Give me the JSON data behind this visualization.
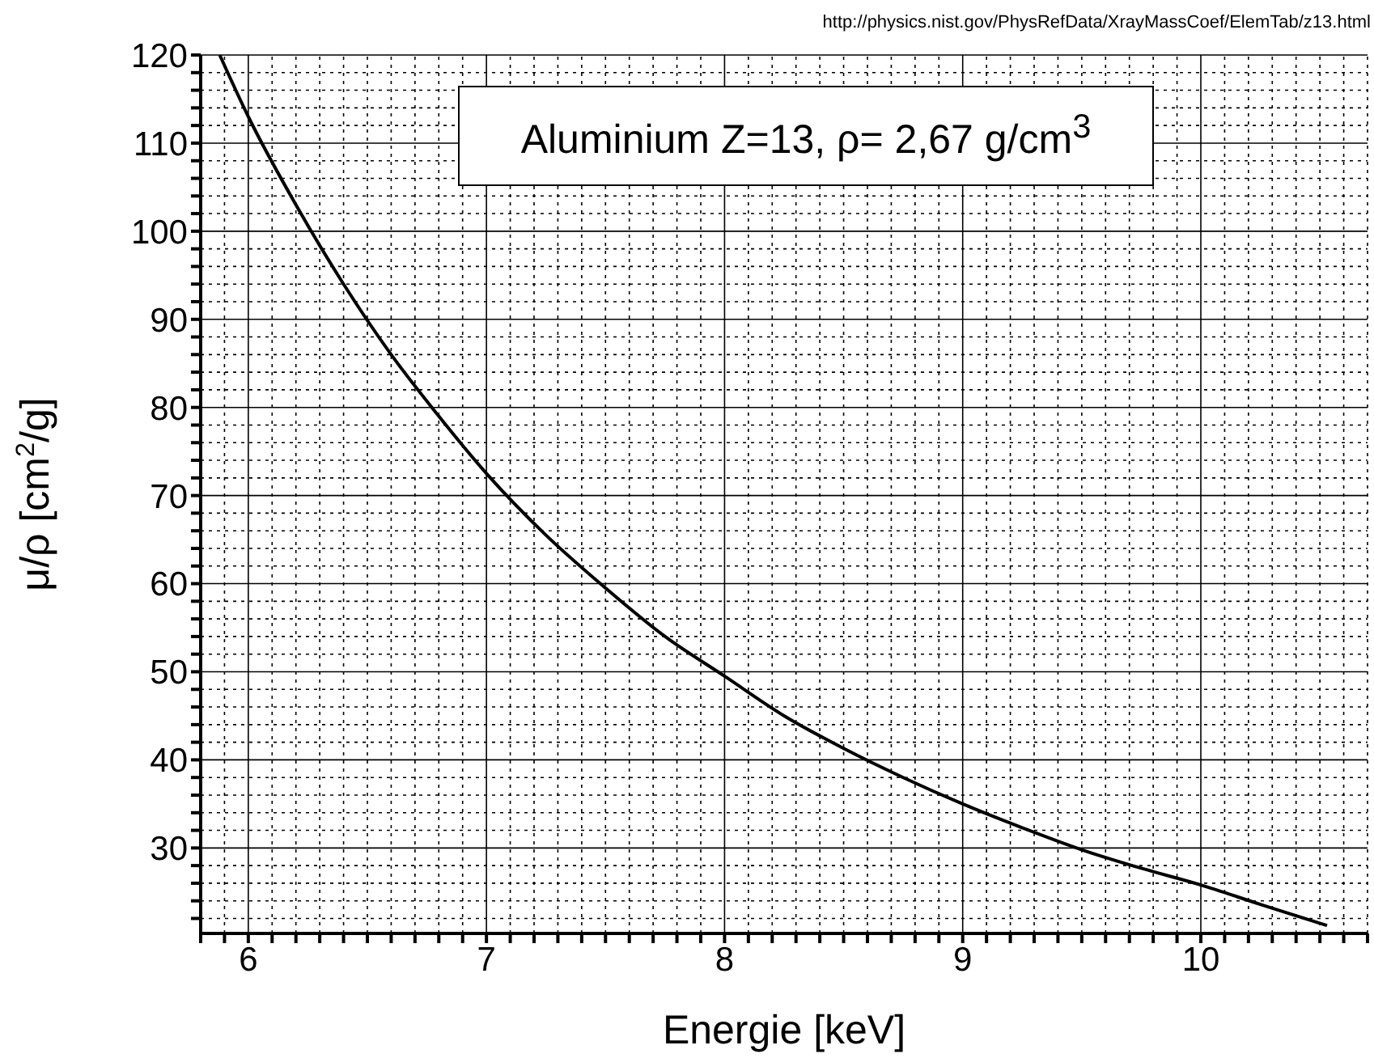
{
  "chart_data": {
    "type": "line",
    "xlabel": "Energie [keV]",
    "ylabel": "μ/ρ [cm$^{2}$/g]",
    "annotations": [
      "http://physics.nist.gov/PhysRefData/XrayMassCoef/ElemTab/z13.html",
      "Aluminium Z=13, ρ= 2,67 g/cm$^{3}$"
    ],
    "x": [
      5.88,
      6,
      6.2,
      6.4,
      6.6,
      6.8,
      7,
      7.25,
      7.5,
      7.75,
      8,
      8.25,
      8.5,
      8.75,
      9,
      9.25,
      9.5,
      9.75,
      10,
      10.25,
      10.53
    ],
    "series": [
      {
        "color": "#000000",
        "values": [
          120,
          113,
          103,
          94,
          86,
          79,
          72.5,
          65.5,
          59.5,
          54,
          49.5,
          45,
          41.3,
          38,
          35,
          32.3,
          29.8,
          27.7,
          25.8,
          23.6,
          21.2
        ]
      }
    ],
    "xlim": [
      5.8,
      10.7
    ],
    "ylim": [
      20.3,
      120
    ],
    "xticks": [
      {
        "value": 5.8,
        "label": null
      },
      {
        "value": 5.9,
        "label": null
      },
      6,
      {
        "value": 6.1,
        "label": null
      },
      {
        "value": 6.2,
        "label": null
      },
      {
        "value": 6.3,
        "label": null
      },
      {
        "value": 6.4,
        "label": null
      },
      {
        "value": 6.5,
        "label": null
      },
      {
        "value": 6.6,
        "label": null
      },
      {
        "value": 6.7,
        "label": null
      },
      {
        "value": 6.8,
        "label": null
      },
      {
        "value": 6.9,
        "label": null
      },
      7,
      {
        "value": 7.1,
        "label": null
      },
      {
        "value": 7.2,
        "label": null
      },
      {
        "value": 7.3,
        "label": null
      },
      {
        "value": 7.4,
        "label": null
      },
      {
        "value": 7.5,
        "label": null
      },
      {
        "value": 7.6,
        "label": null
      },
      {
        "value": 7.7,
        "label": null
      },
      {
        "value": 7.8,
        "label": null
      },
      {
        "value": 7.9,
        "label": null
      },
      8,
      {
        "value": 8.1,
        "label": null
      },
      {
        "value": 8.2,
        "label": null
      },
      {
        "value": 8.3,
        "label": null
      },
      {
        "value": 8.4,
        "label": null
      },
      {
        "value": 8.5,
        "label": null
      },
      {
        "value": 8.6,
        "label": null
      },
      {
        "value": 8.7,
        "label": null
      },
      {
        "value": 8.8,
        "label": null
      },
      {
        "value": 8.9,
        "label": null
      },
      9,
      {
        "value": 9.1,
        "label": null
      },
      {
        "value": 9.2,
        "label": null
      },
      {
        "value": 9.3,
        "label": null
      },
      {
        "value": 9.4,
        "label": null
      },
      {
        "value": 9.5,
        "label": null
      },
      {
        "value": 9.6,
        "label": null
      },
      {
        "value": 9.7,
        "label": null
      },
      {
        "value": 9.8,
        "label": null
      },
      {
        "value": 9.9,
        "label": null
      },
      10,
      {
        "value": 10.1,
        "label": null
      },
      {
        "value": 10.2,
        "label": null
      },
      {
        "value": 10.3,
        "label": null
      },
      {
        "value": 10.4,
        "label": null
      },
      {
        "value": 10.5,
        "label": null
      },
      {
        "value": 10.6,
        "label": null
      },
      {
        "value": 10.7,
        "label": null
      }
    ],
    "yticks": [
      {
        "value": 22,
        "label": null
      },
      {
        "value": 24,
        "label": null
      },
      {
        "value": 26,
        "label": null
      },
      {
        "value": 28,
        "label": null
      },
      30,
      {
        "value": 32,
        "label": null
      },
      {
        "value": 34,
        "label": null
      },
      {
        "value": 36,
        "label": null
      },
      {
        "value": 38,
        "label": null
      },
      40,
      {
        "value": 42,
        "label": null
      },
      {
        "value": 44,
        "label": null
      },
      {
        "value": 46,
        "label": null
      },
      {
        "value": 48,
        "label": null
      },
      50,
      {
        "value": 52,
        "label": null
      },
      {
        "value": 54,
        "label": null
      },
      {
        "value": 56,
        "label": null
      },
      {
        "value": 58,
        "label": null
      },
      60,
      {
        "value": 62,
        "label": null
      },
      {
        "value": 64,
        "label": null
      },
      {
        "value": 66,
        "label": null
      },
      {
        "value": 68,
        "label": null
      },
      70,
      {
        "value": 72,
        "label": null
      },
      {
        "value": 74,
        "label": null
      },
      {
        "value": 76,
        "label": null
      },
      {
        "value": 78,
        "label": null
      },
      80,
      {
        "value": 82,
        "label": null
      },
      {
        "value": 84,
        "label": null
      },
      {
        "value": 86,
        "label": null
      },
      {
        "value": 88,
        "label": null
      },
      90,
      {
        "value": 92,
        "label": null
      },
      {
        "value": 94,
        "label": null
      },
      {
        "value": 96,
        "label": null
      },
      {
        "value": 98,
        "label": null
      },
      100,
      {
        "value": 102,
        "label": null
      },
      {
        "value": 104,
        "label": null
      },
      {
        "value": 106,
        "label": null
      },
      {
        "value": 108,
        "label": null
      },
      110,
      {
        "value": 112,
        "label": null
      },
      {
        "value": 114,
        "label": null
      },
      {
        "value": 116,
        "label": null
      },
      {
        "value": 118,
        "label": null
      },
      120
    ],
    "grid": true,
    "marker": "none",
    "line_style": "solid"
  }
}
